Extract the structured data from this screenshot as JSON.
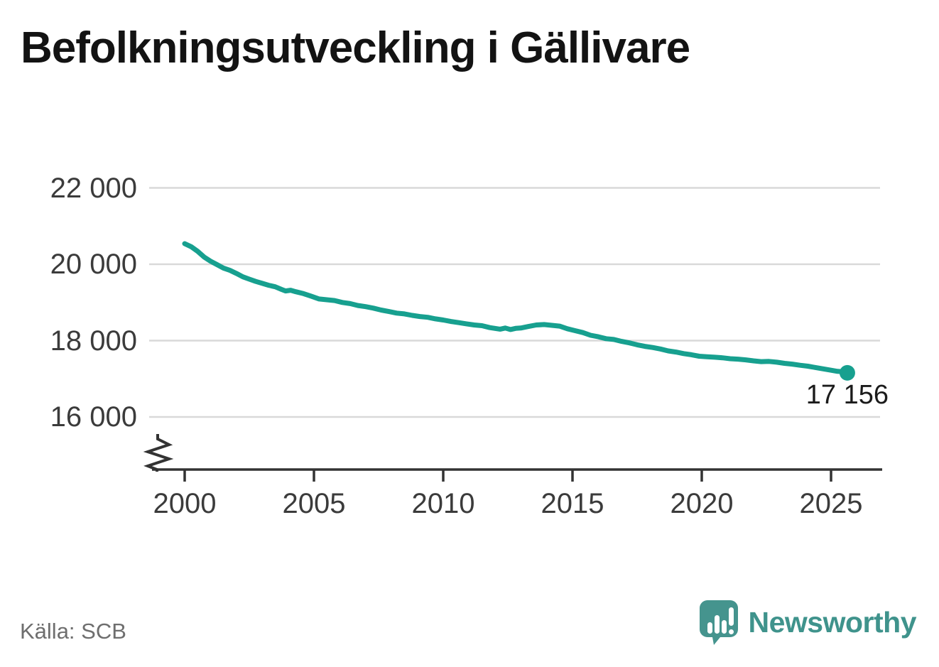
{
  "title": "Befolkningsutveckling i Gällivare",
  "source": "Källa: SCB",
  "logo": {
    "text": "Newsworthy",
    "icon": "newsworthy-speech-bubble-chart-icon"
  },
  "colors": {
    "line": "#17a08f",
    "dot": "#17a08f",
    "grid": "#d9d9d9",
    "axis": "#333333",
    "tick_text": "#3b3b3b",
    "title_text": "#131313",
    "source_text": "#6e6e6e",
    "logo_teal": "#3f938c"
  },
  "chart_data": {
    "type": "line",
    "title": "Befolkningsutveckling i Gällivare",
    "xlabel": "",
    "ylabel": "",
    "grid": "horizontal",
    "legend": "none",
    "axis_break_bottom_left": true,
    "x_ticks": [
      {
        "value": 2000,
        "label": "2000"
      },
      {
        "value": 2005,
        "label": "2005"
      },
      {
        "value": 2010,
        "label": "2010"
      },
      {
        "value": 2015,
        "label": "2015"
      },
      {
        "value": 2020,
        "label": "2020"
      },
      {
        "value": 2025,
        "label": "2025"
      }
    ],
    "y_ticks": [
      {
        "value": 22000,
        "label": "22 000"
      },
      {
        "value": 20000,
        "label": "20 000"
      },
      {
        "value": 18000,
        "label": "18 000"
      },
      {
        "value": 16000,
        "label": "16 000"
      }
    ],
    "xlim": [
      1998.3,
      2026.9
    ],
    "ylim_shown": [
      16000,
      22000
    ],
    "end_label": {
      "x": 2025.63,
      "y": 17156,
      "text": "17 156"
    },
    "series": [
      {
        "name": "Befolkning i Gällivare",
        "color": "#17a08f",
        "points": [
          [
            2000.0,
            20540
          ],
          [
            2000.25,
            20460
          ],
          [
            2000.5,
            20340
          ],
          [
            2000.75,
            20190
          ],
          [
            2001.0,
            20080
          ],
          [
            2001.25,
            19990
          ],
          [
            2001.5,
            19900
          ],
          [
            2001.75,
            19840
          ],
          [
            2002.0,
            19760
          ],
          [
            2002.25,
            19670
          ],
          [
            2002.5,
            19610
          ],
          [
            2002.75,
            19550
          ],
          [
            2003.0,
            19500
          ],
          [
            2003.25,
            19450
          ],
          [
            2003.5,
            19410
          ],
          [
            2003.75,
            19340
          ],
          [
            2003.9,
            19300
          ],
          [
            2004.1,
            19320
          ],
          [
            2004.3,
            19280
          ],
          [
            2004.6,
            19230
          ],
          [
            2004.9,
            19160
          ],
          [
            2005.2,
            19090
          ],
          [
            2005.5,
            19070
          ],
          [
            2005.8,
            19050
          ],
          [
            2006.1,
            19000
          ],
          [
            2006.4,
            18970
          ],
          [
            2006.7,
            18920
          ],
          [
            2007.0,
            18890
          ],
          [
            2007.3,
            18850
          ],
          [
            2007.6,
            18800
          ],
          [
            2007.9,
            18760
          ],
          [
            2008.2,
            18720
          ],
          [
            2008.5,
            18700
          ],
          [
            2008.8,
            18660
          ],
          [
            2009.1,
            18630
          ],
          [
            2009.4,
            18610
          ],
          [
            2009.7,
            18570
          ],
          [
            2010.0,
            18540
          ],
          [
            2010.3,
            18500
          ],
          [
            2010.6,
            18470
          ],
          [
            2010.9,
            18440
          ],
          [
            2011.2,
            18410
          ],
          [
            2011.5,
            18390
          ],
          [
            2011.8,
            18340
          ],
          [
            2012.0,
            18320
          ],
          [
            2012.2,
            18300
          ],
          [
            2012.4,
            18330
          ],
          [
            2012.6,
            18290
          ],
          [
            2012.8,
            18320
          ],
          [
            2013.0,
            18330
          ],
          [
            2013.3,
            18370
          ],
          [
            2013.6,
            18410
          ],
          [
            2013.9,
            18420
          ],
          [
            2014.2,
            18400
          ],
          [
            2014.5,
            18380
          ],
          [
            2014.8,
            18310
          ],
          [
            2015.1,
            18260
          ],
          [
            2015.4,
            18210
          ],
          [
            2015.7,
            18140
          ],
          [
            2016.0,
            18100
          ],
          [
            2016.3,
            18050
          ],
          [
            2016.6,
            18030
          ],
          [
            2016.9,
            17980
          ],
          [
            2017.2,
            17940
          ],
          [
            2017.5,
            17890
          ],
          [
            2017.8,
            17850
          ],
          [
            2018.1,
            17820
          ],
          [
            2018.4,
            17780
          ],
          [
            2018.7,
            17730
          ],
          [
            2019.0,
            17700
          ],
          [
            2019.3,
            17660
          ],
          [
            2019.6,
            17630
          ],
          [
            2019.9,
            17590
          ],
          [
            2020.2,
            17575
          ],
          [
            2020.5,
            17565
          ],
          [
            2020.8,
            17550
          ],
          [
            2021.1,
            17525
          ],
          [
            2021.4,
            17515
          ],
          [
            2021.7,
            17495
          ],
          [
            2022.0,
            17470
          ],
          [
            2022.3,
            17450
          ],
          [
            2022.6,
            17455
          ],
          [
            2022.9,
            17435
          ],
          [
            2023.2,
            17405
          ],
          [
            2023.5,
            17385
          ],
          [
            2023.8,
            17355
          ],
          [
            2024.1,
            17330
          ],
          [
            2024.4,
            17295
          ],
          [
            2024.7,
            17260
          ],
          [
            2025.0,
            17225
          ],
          [
            2025.25,
            17195
          ],
          [
            2025.45,
            17185
          ],
          [
            2025.63,
            17156
          ]
        ]
      }
    ]
  }
}
